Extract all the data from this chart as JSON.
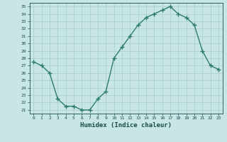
{
  "x": [
    0,
    1,
    2,
    3,
    4,
    5,
    6,
    7,
    8,
    9,
    10,
    11,
    12,
    13,
    14,
    15,
    16,
    17,
    18,
    19,
    20,
    21,
    22,
    23
  ],
  "y": [
    27.5,
    27.0,
    26.0,
    22.5,
    21.5,
    21.5,
    21.0,
    21.0,
    22.5,
    23.5,
    28.0,
    29.5,
    31.0,
    32.5,
    33.5,
    34.0,
    34.5,
    35.0,
    34.0,
    33.5,
    32.5,
    29.0,
    27.0,
    26.5
  ],
  "xlabel": "Humidex (Indice chaleur)",
  "xlim": [
    -0.5,
    23.5
  ],
  "ylim": [
    20.5,
    35.5
  ],
  "yticks": [
    21,
    22,
    23,
    24,
    25,
    26,
    27,
    28,
    29,
    30,
    31,
    32,
    33,
    34,
    35
  ],
  "xticks": [
    0,
    1,
    2,
    3,
    4,
    5,
    6,
    7,
    8,
    9,
    10,
    11,
    12,
    13,
    14,
    15,
    16,
    17,
    18,
    19,
    20,
    21,
    22,
    23
  ],
  "line_color": "#2d7b6f",
  "bg_color": "#c8e6e6",
  "grid_color": "#a8cccc",
  "fig_bg": "#c8e6e6",
  "tick_color": "#1a4a4a",
  "xlabel_fontsize": 6.5,
  "tick_fontsize": 4.5
}
